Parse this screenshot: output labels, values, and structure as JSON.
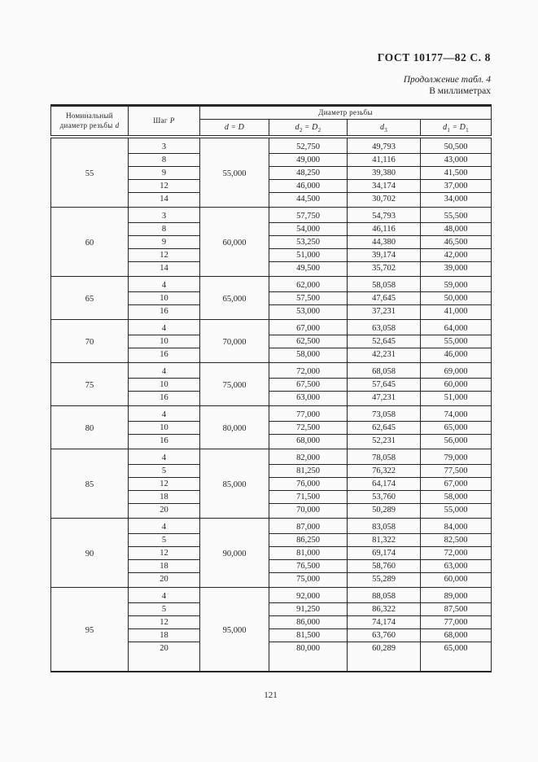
{
  "colors": {
    "paper": "#fbfbfb",
    "ink": "#1f1f1f",
    "rule": "#262626"
  },
  "header": {
    "document_code": "ГОСТ 10177—82 С. 8",
    "continuation_note": "Продолжение табл. 4",
    "units_note": "В миллиметрах"
  },
  "table": {
    "col_nominal": {
      "line1": "Номинальный",
      "line2": "диаметр резьбы",
      "symbol": "d"
    },
    "col_pitch": {
      "label": "Шаг",
      "symbol": "P"
    },
    "col_diameter_group": "Диаметр резьбы",
    "subcols": [
      {
        "lhs": "d",
        "lhs_sub": "",
        "eq": "=",
        "rhs": "D",
        "rhs_sub": ""
      },
      {
        "lhs": "d",
        "lhs_sub": "2",
        "eq": "=",
        "rhs": "D",
        "rhs_sub": "2"
      },
      {
        "lhs": "d",
        "lhs_sub": "3",
        "eq": "",
        "rhs": "",
        "rhs_sub": ""
      },
      {
        "lhs": "d",
        "lhs_sub": "1",
        "eq": "=",
        "rhs": "D",
        "rhs_sub": "1"
      }
    ],
    "groups": [
      {
        "nominal": "55",
        "d_eq_D": "55,000",
        "rows": [
          {
            "p": "3",
            "d2": "52,750",
            "d3": "49,793",
            "d1": "50,500"
          },
          {
            "p": "8",
            "d2": "49,000",
            "d3": "41,116",
            "d1": "43,000"
          },
          {
            "p": "9",
            "d2": "48,250",
            "d3": "39,380",
            "d1": "41,500"
          },
          {
            "p": "12",
            "d2": "46,000",
            "d3": "34,174",
            "d1": "37,000"
          },
          {
            "p": "14",
            "d2": "44,500",
            "d3": "30,702",
            "d1": "34,000"
          }
        ]
      },
      {
        "nominal": "60",
        "d_eq_D": "60,000",
        "rows": [
          {
            "p": "3",
            "d2": "57,750",
            "d3": "54,793",
            "d1": "55,500"
          },
          {
            "p": "8",
            "d2": "54,000",
            "d3": "46,116",
            "d1": "48,000"
          },
          {
            "p": "9",
            "d2": "53,250",
            "d3": "44,380",
            "d1": "46,500"
          },
          {
            "p": "12",
            "d2": "51,000",
            "d3": "39,174",
            "d1": "42,000"
          },
          {
            "p": "14",
            "d2": "49,500",
            "d3": "35,702",
            "d1": "39,000"
          }
        ]
      },
      {
        "nominal": "65",
        "d_eq_D": "65,000",
        "rows": [
          {
            "p": "4",
            "d2": "62,000",
            "d3": "58,058",
            "d1": "59,000"
          },
          {
            "p": "10",
            "d2": "57,500",
            "d3": "47,645",
            "d1": "50,000"
          },
          {
            "p": "16",
            "d2": "53,000",
            "d3": "37,231",
            "d1": "41,000"
          }
        ]
      },
      {
        "nominal": "70",
        "d_eq_D": "70,000",
        "rows": [
          {
            "p": "4",
            "d2": "67,000",
            "d3": "63,058",
            "d1": "64,000"
          },
          {
            "p": "10",
            "d2": "62,500",
            "d3": "52,645",
            "d1": "55,000"
          },
          {
            "p": "16",
            "d2": "58,000",
            "d3": "42,231",
            "d1": "46,000"
          }
        ]
      },
      {
        "nominal": "75",
        "d_eq_D": "75,000",
        "rows": [
          {
            "p": "4",
            "d2": "72,000",
            "d3": "68,058",
            "d1": "69,000"
          },
          {
            "p": "10",
            "d2": "67,500",
            "d3": "57,645",
            "d1": "60,000"
          },
          {
            "p": "16",
            "d2": "63,000",
            "d3": "47,231",
            "d1": "51,000"
          }
        ]
      },
      {
        "nominal": "80",
        "d_eq_D": "80,000",
        "rows": [
          {
            "p": "4",
            "d2": "77,000",
            "d3": "73,058",
            "d1": "74,000"
          },
          {
            "p": "10",
            "d2": "72,500",
            "d3": "62,645",
            "d1": "65,000"
          },
          {
            "p": "16",
            "d2": "68,000",
            "d3": "52,231",
            "d1": "56,000"
          }
        ]
      },
      {
        "nominal": "85",
        "d_eq_D": "85,000",
        "rows": [
          {
            "p": "4",
            "d2": "82,000",
            "d3": "78,058",
            "d1": "79,000"
          },
          {
            "p": "5",
            "d2": "81,250",
            "d3": "76,322",
            "d1": "77,500"
          },
          {
            "p": "12",
            "d2": "76,000",
            "d3": "64,174",
            "d1": "67,000"
          },
          {
            "p": "18",
            "d2": "71,500",
            "d3": "53,760",
            "d1": "58,000"
          },
          {
            "p": "20",
            "d2": "70,000",
            "d3": "50,289",
            "d1": "55,000"
          }
        ]
      },
      {
        "nominal": "90",
        "d_eq_D": "90,000",
        "rows": [
          {
            "p": "4",
            "d2": "87,000",
            "d3": "83,058",
            "d1": "84,000"
          },
          {
            "p": "5",
            "d2": "86,250",
            "d3": "81,322",
            "d1": "82,500"
          },
          {
            "p": "12",
            "d2": "81,000",
            "d3": "69,174",
            "d1": "72,000"
          },
          {
            "p": "18",
            "d2": "76,500",
            "d3": "58,760",
            "d1": "63,000"
          },
          {
            "p": "20",
            "d2": "75,000",
            "d3": "55,289",
            "d1": "60,000"
          }
        ]
      },
      {
        "nominal": "95",
        "d_eq_D": "95,000",
        "rows": [
          {
            "p": "4",
            "d2": "92,000",
            "d3": "88,058",
            "d1": "89,000"
          },
          {
            "p": "5",
            "d2": "91,250",
            "d3": "86,322",
            "d1": "87,500"
          },
          {
            "p": "12",
            "d2": "86,000",
            "d3": "74,174",
            "d1": "77,000"
          },
          {
            "p": "18",
            "d2": "81,500",
            "d3": "63,760",
            "d1": "68,000"
          },
          {
            "p": "20",
            "d2": "80,000",
            "d3": "60,289",
            "d1": "65,000"
          }
        ]
      }
    ]
  },
  "footer": {
    "page_number": "121"
  }
}
